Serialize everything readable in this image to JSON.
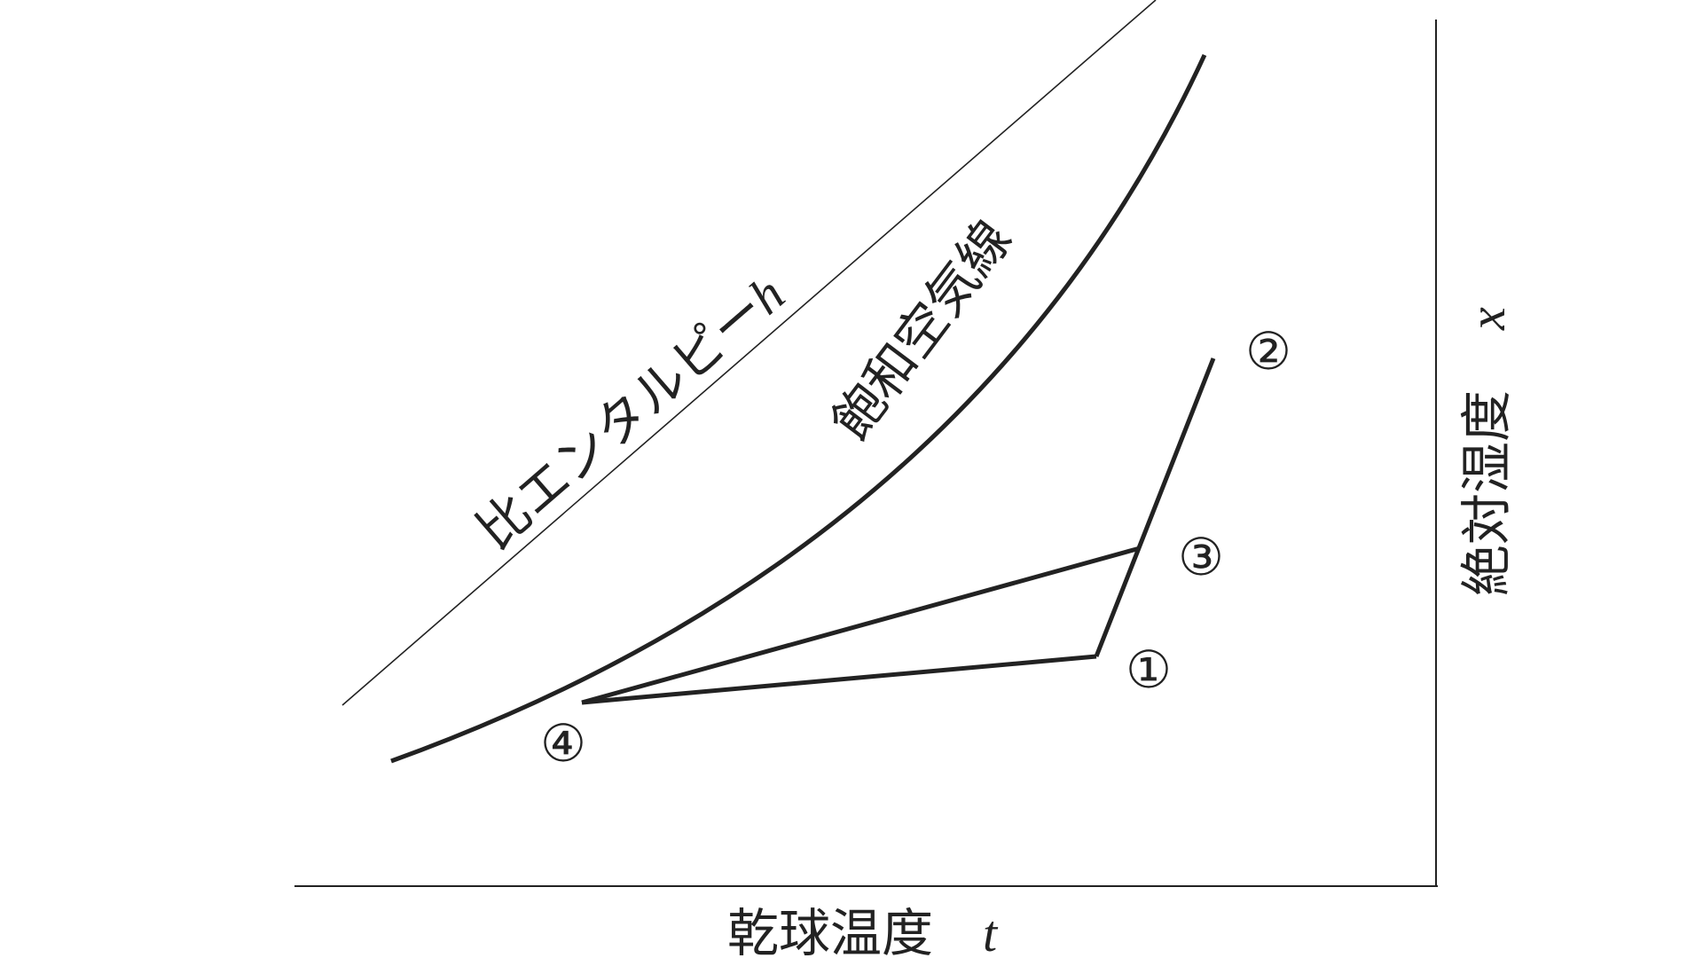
{
  "labels": {
    "enthalpy_text": "比エンタルピー",
    "enthalpy_symbol": "h",
    "saturation_curve": "飽和空気線",
    "x_axis_text": "乾球温度",
    "x_axis_symbol": "t",
    "y_axis_text": "絶対湿度",
    "y_axis_symbol": "x"
  },
  "points": {
    "p1": "①",
    "p2": "②",
    "p3": "③",
    "p4": "④"
  },
  "colors": {
    "ink": "#222222",
    "background": "#ffffff"
  }
}
